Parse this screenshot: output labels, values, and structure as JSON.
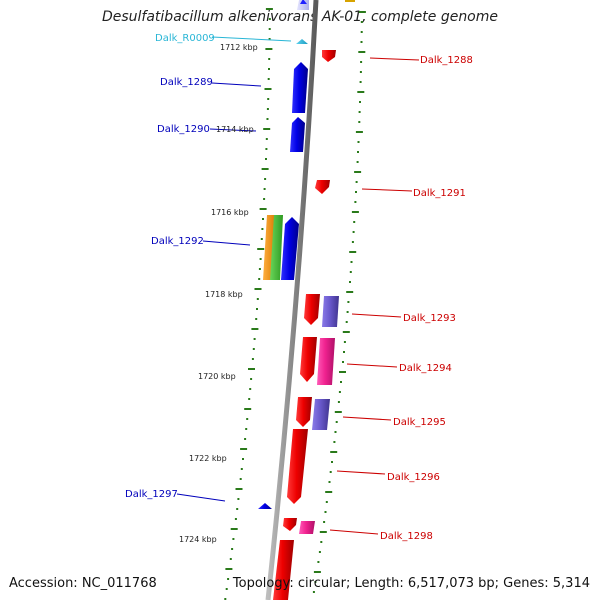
{
  "title": "Desulfatibacillum alkenivorans AK-01, complete genome",
  "footer": {
    "accession": "Accession: NC_011768",
    "summary": "Topology: circular; Length: 6,517,073 bp; Genes: 5,314"
  },
  "colors": {
    "backbone": "#8a8a8a",
    "tick": "#2a7a1a",
    "forward_label": "#0000bb",
    "reverse_label": "#cc0000",
    "rna_label": "#29b6d6"
  },
  "scale_labels": [
    "1712 kbp",
    "1714 kbp",
    "1716 kbp",
    "1718 kbp",
    "1720 kbp",
    "1722 kbp",
    "1724 kbp"
  ],
  "genes": [
    {
      "label": "Dalk_R0009",
      "strand": "forward",
      "color": "#29b6d6"
    },
    {
      "label": "Dalk_1288",
      "strand": "reverse",
      "color": "#e00000"
    },
    {
      "label": "Dalk_1289",
      "strand": "forward",
      "color": "#0000dd"
    },
    {
      "label": "Dalk_1290",
      "strand": "forward",
      "color": "#0000dd"
    },
    {
      "label": "Dalk_1291",
      "strand": "reverse",
      "color": "#e00000"
    },
    {
      "label": "Dalk_1292",
      "strand": "forward",
      "color": "#0000dd"
    },
    {
      "label": "Dalk_1293",
      "strand": "reverse",
      "color": "#e00000"
    },
    {
      "label": "Dalk_1294",
      "strand": "reverse",
      "color": "#e00000"
    },
    {
      "label": "Dalk_1295",
      "strand": "reverse",
      "color": "#e00000"
    },
    {
      "label": "Dalk_1296",
      "strand": "reverse",
      "color": "#e00000"
    },
    {
      "label": "Dalk_1297",
      "strand": "forward",
      "color": "#0000dd"
    },
    {
      "label": "Dalk_1298",
      "strand": "reverse",
      "color": "#e00000"
    }
  ]
}
